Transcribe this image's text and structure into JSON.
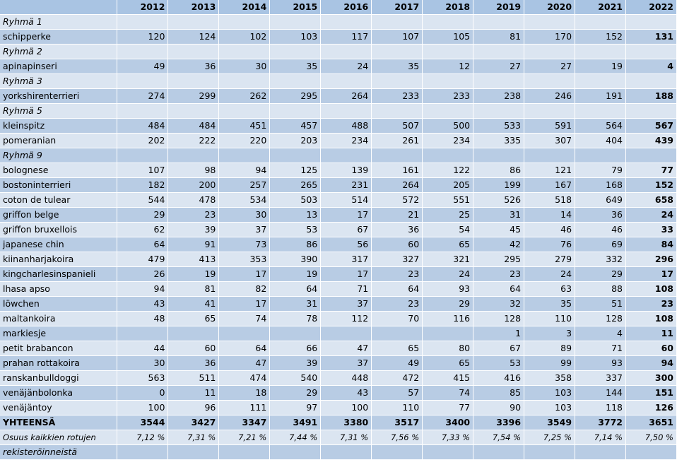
{
  "years": [
    "2012",
    "2013",
    "2014",
    "2015",
    "2016",
    "2017",
    "2018",
    "2019",
    "2020",
    "2021",
    "2022"
  ],
  "rows": [
    {
      "kind": "group",
      "label": "Ryhmä 1",
      "values": [
        "",
        "",
        "",
        "",
        "",
        "",
        "",
        "",
        "",
        "",
        ""
      ]
    },
    {
      "kind": "breed",
      "label": "schipperke",
      "values": [
        "120",
        "124",
        "102",
        "103",
        "117",
        "107",
        "105",
        "81",
        "170",
        "152",
        "131"
      ]
    },
    {
      "kind": "group",
      "label": "Ryhmä 2",
      "values": [
        "",
        "",
        "",
        "",
        "",
        "",
        "",
        "",
        "",
        "",
        ""
      ]
    },
    {
      "kind": "breed",
      "label": "apinapinseri",
      "values": [
        "49",
        "36",
        "30",
        "35",
        "24",
        "35",
        "12",
        "27",
        "27",
        "19",
        "4"
      ]
    },
    {
      "kind": "group",
      "label": "Ryhmä 3",
      "values": [
        "",
        "",
        "",
        "",
        "",
        "",
        "",
        "",
        "",
        "",
        ""
      ]
    },
    {
      "kind": "breed",
      "label": "yorkshirenterrieri",
      "values": [
        "274",
        "299",
        "262",
        "295",
        "264",
        "233",
        "233",
        "238",
        "246",
        "191",
        "188"
      ]
    },
    {
      "kind": "group",
      "label": "Ryhmä 5",
      "values": [
        "",
        "",
        "",
        "",
        "",
        "",
        "",
        "",
        "",
        "",
        ""
      ]
    },
    {
      "kind": "breed",
      "label": "kleinspitz",
      "values": [
        "484",
        "484",
        "451",
        "457",
        "488",
        "507",
        "500",
        "533",
        "591",
        "564",
        "567"
      ]
    },
    {
      "kind": "breed",
      "label": "pomeranian",
      "values": [
        "202",
        "222",
        "220",
        "203",
        "234",
        "261",
        "234",
        "335",
        "307",
        "404",
        "439"
      ]
    },
    {
      "kind": "group",
      "label": "Ryhmä 9",
      "values": [
        "",
        "",
        "",
        "",
        "",
        "",
        "",
        "",
        "",
        "",
        ""
      ]
    },
    {
      "kind": "breed",
      "label": "bolognese",
      "values": [
        "107",
        "98",
        "94",
        "125",
        "139",
        "161",
        "122",
        "86",
        "121",
        "79",
        "77"
      ]
    },
    {
      "kind": "breed",
      "label": "bostoninterrieri",
      "values": [
        "182",
        "200",
        "257",
        "265",
        "231",
        "264",
        "205",
        "199",
        "167",
        "168",
        "152"
      ]
    },
    {
      "kind": "breed",
      "label": "coton de tulear",
      "values": [
        "544",
        "478",
        "534",
        "503",
        "514",
        "572",
        "551",
        "526",
        "518",
        "649",
        "658"
      ]
    },
    {
      "kind": "breed",
      "label": "griffon belge",
      "values": [
        "29",
        "23",
        "30",
        "13",
        "17",
        "21",
        "25",
        "31",
        "14",
        "36",
        "24"
      ]
    },
    {
      "kind": "breed",
      "label": "griffon bruxellois",
      "values": [
        "62",
        "39",
        "37",
        "53",
        "67",
        "36",
        "54",
        "45",
        "46",
        "46",
        "33"
      ]
    },
    {
      "kind": "breed",
      "label": "japanese chin",
      "values": [
        "64",
        "91",
        "73",
        "86",
        "56",
        "60",
        "65",
        "42",
        "76",
        "69",
        "84"
      ]
    },
    {
      "kind": "breed",
      "label": "kiinanharjakoira",
      "values": [
        "479",
        "413",
        "353",
        "390",
        "317",
        "327",
        "321",
        "295",
        "279",
        "332",
        "296"
      ]
    },
    {
      "kind": "breed",
      "label": "kingcharlesinspanieli",
      "values": [
        "26",
        "19",
        "17",
        "19",
        "17",
        "23",
        "24",
        "23",
        "24",
        "29",
        "17"
      ]
    },
    {
      "kind": "breed",
      "label": "lhasa apso",
      "values": [
        "94",
        "81",
        "82",
        "64",
        "71",
        "64",
        "93",
        "64",
        "63",
        "88",
        "108"
      ]
    },
    {
      "kind": "breed",
      "label": "löwchen",
      "values": [
        "43",
        "41",
        "17",
        "31",
        "37",
        "23",
        "29",
        "32",
        "35",
        "51",
        "23"
      ]
    },
    {
      "kind": "breed",
      "label": "maltankoira",
      "values": [
        "48",
        "65",
        "74",
        "78",
        "112",
        "70",
        "116",
        "128",
        "110",
        "128",
        "108"
      ]
    },
    {
      "kind": "breed",
      "label": "markiesje",
      "values": [
        "",
        "",
        "",
        "",
        "",
        "",
        "",
        "1",
        "3",
        "4",
        "11"
      ]
    },
    {
      "kind": "breed",
      "label": "petit brabancon",
      "values": [
        "44",
        "60",
        "64",
        "66",
        "47",
        "65",
        "80",
        "67",
        "89",
        "71",
        "60"
      ]
    },
    {
      "kind": "breed",
      "label": "prahan rottakoira",
      "values": [
        "30",
        "36",
        "47",
        "39",
        "37",
        "49",
        "65",
        "53",
        "99",
        "93",
        "94"
      ]
    },
    {
      "kind": "breed",
      "label": "ranskanbulldoggi",
      "values": [
        "563",
        "511",
        "474",
        "540",
        "448",
        "472",
        "415",
        "416",
        "358",
        "337",
        "300"
      ]
    },
    {
      "kind": "breed",
      "label": "venäjänbolonka",
      "values": [
        "0",
        "11",
        "18",
        "29",
        "43",
        "57",
        "74",
        "85",
        "103",
        "144",
        "151"
      ]
    },
    {
      "kind": "breed",
      "label": "venäjäntoy",
      "values": [
        "100",
        "96",
        "111",
        "97",
        "100",
        "110",
        "77",
        "90",
        "103",
        "118",
        "126"
      ]
    },
    {
      "kind": "total",
      "label": "YHTEENSÄ",
      "values": [
        "3544",
        "3427",
        "3347",
        "3491",
        "3380",
        "3517",
        "3400",
        "3396",
        "3549",
        "3772",
        "3651"
      ]
    },
    {
      "kind": "share",
      "label": "Osuus kaikkien rotujen",
      "values": [
        "7,12 %",
        "7,31 %",
        "7,21 %",
        "7,44 %",
        "7,31 %",
        "7,56 %",
        "7,33 %",
        "7,54 %",
        "7,25 %",
        "7,14 %",
        "7,50 %"
      ]
    },
    {
      "kind": "share2",
      "label": "rekisteröinneistä",
      "values": [
        "",
        "",
        "",
        "",
        "",
        "",
        "",
        "",
        "",
        "",
        ""
      ]
    }
  ]
}
